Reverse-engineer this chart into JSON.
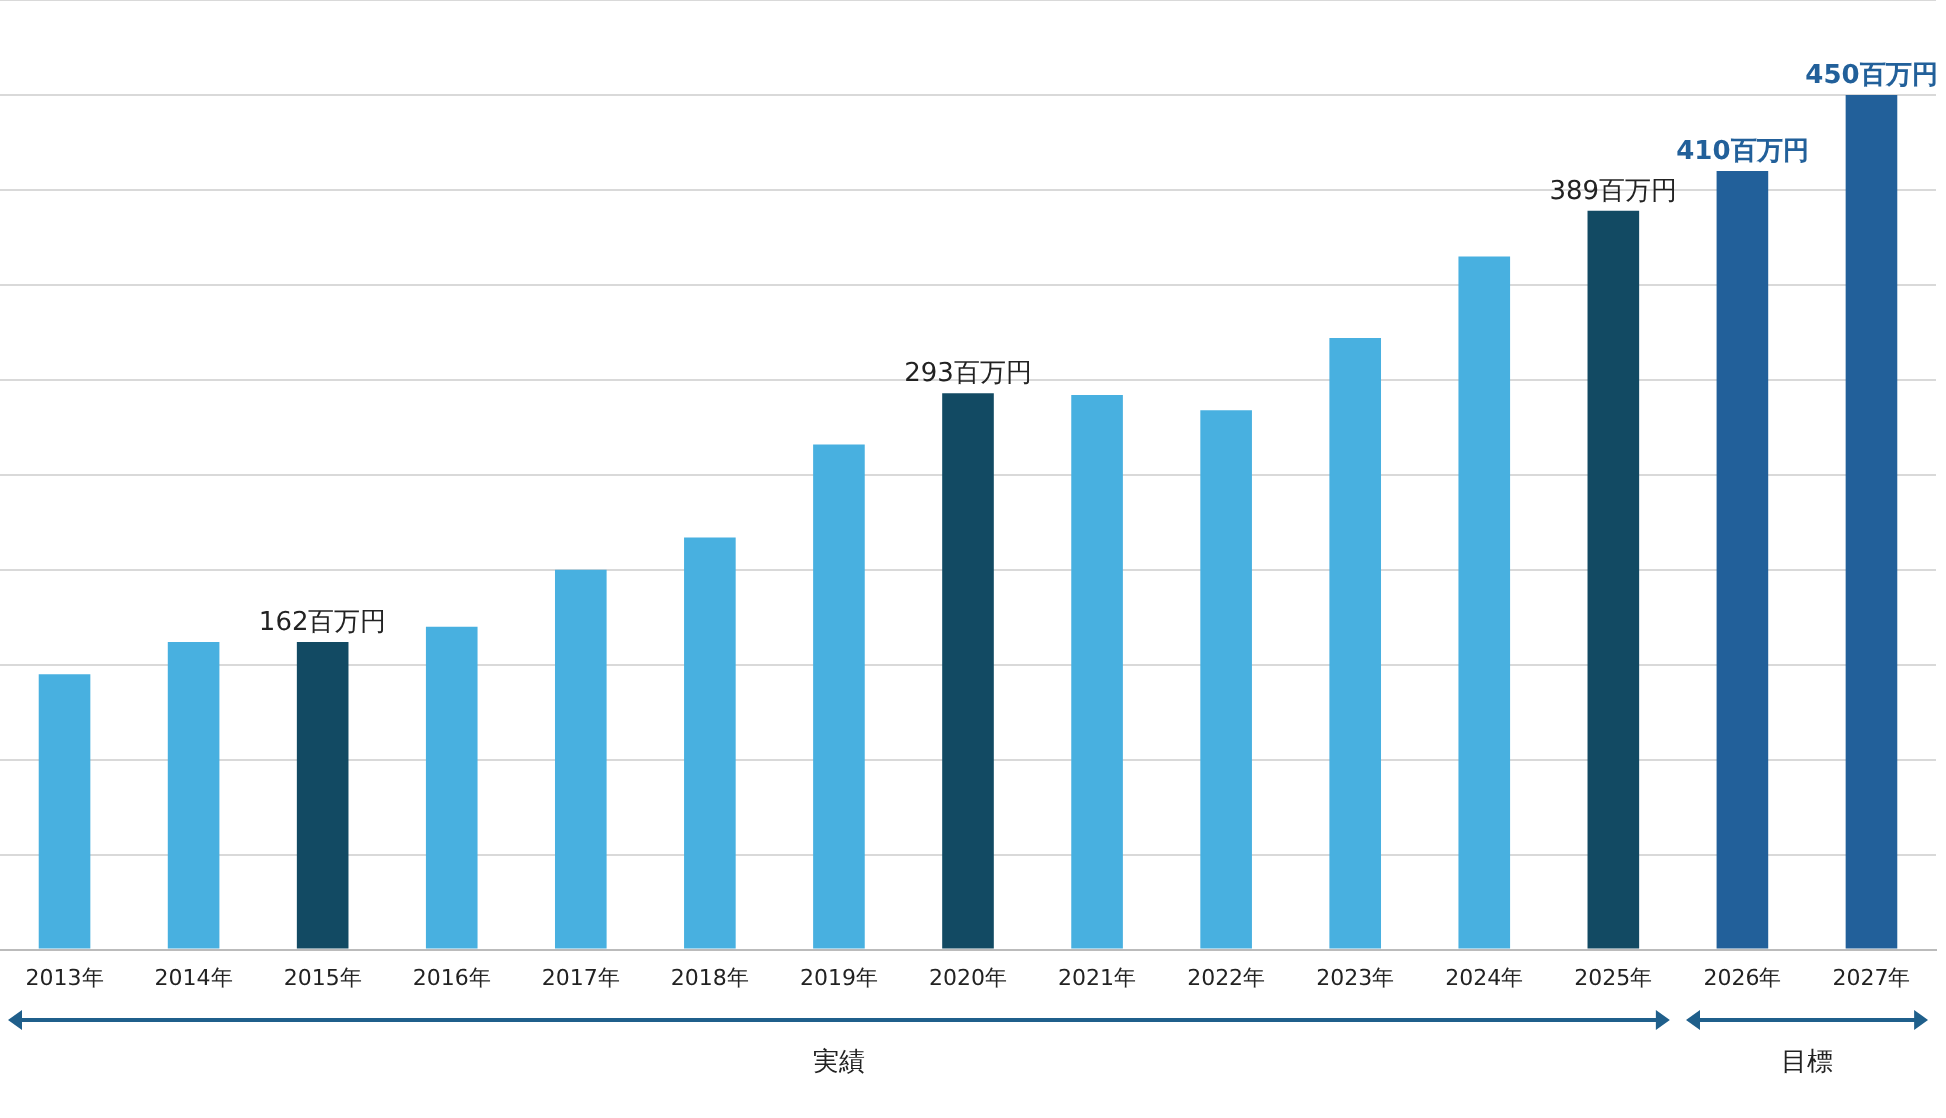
{
  "chart_data": {
    "type": "bar",
    "categories": [
      "2013年",
      "2014年",
      "2015年",
      "2016年",
      "2017年",
      "2018年",
      "2019年",
      "2020年",
      "2021年",
      "2022年",
      "2023年",
      "2024年",
      "2025年",
      "2026年",
      "2027年"
    ],
    "values": [
      145,
      162,
      162,
      170,
      200,
      217,
      266,
      293,
      292,
      284,
      322,
      365,
      389,
      410,
      450
    ],
    "colors": [
      "#48b0e0",
      "#48b0e0",
      "#124a63",
      "#48b0e0",
      "#48b0e0",
      "#48b0e0",
      "#48b0e0",
      "#124a63",
      "#48b0e0",
      "#48b0e0",
      "#48b0e0",
      "#48b0e0",
      "#124a63",
      "#22609a",
      "#22609a"
    ],
    "value_labels": [
      null,
      null,
      "162百万円",
      null,
      null,
      null,
      null,
      "293百万円",
      null,
      null,
      null,
      null,
      "389百万円",
      "410百万円",
      "450百万円"
    ],
    "ylim": [
      0,
      500
    ],
    "yticks": [
      {
        "value": 0,
        "label": null
      },
      {
        "value": 50,
        "label": null
      },
      {
        "value": 100,
        "label": null
      },
      {
        "value": 150,
        "label": null
      },
      {
        "value": 200,
        "label": null
      },
      {
        "value": 250,
        "label": null
      },
      {
        "value": 300,
        "label": null
      },
      {
        "value": 350,
        "label": null
      },
      {
        "value": 400,
        "label": null
      },
      {
        "value": 450,
        "label": null
      },
      {
        "value": 500,
        "label": null
      }
    ],
    "tick_labels": "x",
    "grid": "y",
    "legend": false,
    "annotations": [
      "実績",
      "目標"
    ]
  }
}
